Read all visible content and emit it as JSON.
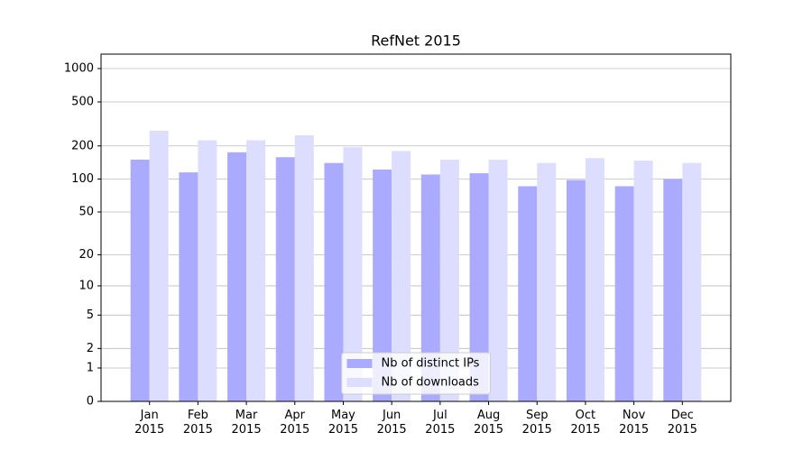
{
  "chart_data": {
    "type": "bar",
    "title": "RefNet 2015",
    "categories": [
      "Jan\n2015",
      "Feb\n2015",
      "Mar\n2015",
      "Apr\n2015",
      "May\n2015",
      "Jun\n2015",
      "Jul\n2015",
      "Aug\n2015",
      "Sep\n2015",
      "Oct\n2015",
      "Nov\n2015",
      "Dec\n2015"
    ],
    "series": [
      {
        "name": "Nb of distinct IPs",
        "color": "#aaaaff",
        "values": [
          150,
          115,
          175,
          158,
          140,
          122,
          110,
          113,
          86,
          98,
          86,
          100
        ]
      },
      {
        "name": "Nb of downloads",
        "color": "#ddddff",
        "values": [
          275,
          225,
          225,
          250,
          195,
          180,
          150,
          150,
          140,
          155,
          147,
          140
        ]
      }
    ],
    "yscale": "log1p",
    "ylim": [
      0,
      1350
    ],
    "yticks": [
      0,
      1,
      2,
      5,
      10,
      20,
      50,
      100,
      200,
      500,
      1000
    ],
    "grid": true,
    "legend": "lower center"
  }
}
